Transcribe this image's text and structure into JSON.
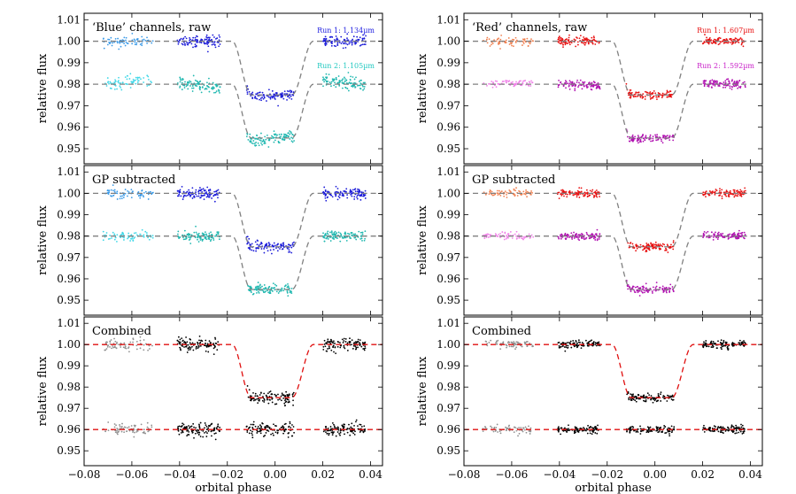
{
  "chart_data": [
    {
      "type": "scatter",
      "title": "‘Blue’ channels, raw",
      "xlabel": "",
      "ylabel": "relative flux",
      "xlim": [
        -0.08,
        0.045
      ],
      "ylim": [
        0.943,
        1.013
      ],
      "yticks": [
        0.95,
        0.96,
        0.97,
        0.98,
        0.99,
        1.0,
        1.01
      ],
      "xticks": [],
      "series": [
        {
          "name": "Run 1: 1.134µm",
          "label_color": "#2020e0",
          "baseline": 1.0,
          "depth": 0.025,
          "noise": 0.0012,
          "systematic": 0.0,
          "color_pre": "#3a9ae8",
          "color_main": "#1a1ad8"
        },
        {
          "name": "Run 2: 1.105µm",
          "label_color": "#20c8c0",
          "baseline": 0.98,
          "depth": 0.025,
          "noise": 0.0015,
          "systematic": 0.003,
          "color_pre": "#40d8e8",
          "color_main": "#20b8b0"
        }
      ],
      "model_color": "#808080",
      "grid": false
    },
    {
      "type": "scatter",
      "title": "‘Red’ channels, raw",
      "xlabel": "",
      "ylabel": "relative flux",
      "xlim": [
        -0.08,
        0.045
      ],
      "ylim": [
        0.943,
        1.013
      ],
      "yticks": [
        0.95,
        0.96,
        0.97,
        0.98,
        0.99,
        1.0,
        1.01
      ],
      "xticks": [],
      "series": [
        {
          "name": "Run 1: 1.607µm",
          "label_color": "#e81010",
          "baseline": 1.0,
          "depth": 0.025,
          "noise": 0.0009,
          "systematic": 0.0,
          "color_pre": "#f08050",
          "color_main": "#e81010"
        },
        {
          "name": "Run 2: 1.592µm",
          "label_color": "#c820c8",
          "baseline": 0.98,
          "depth": 0.025,
          "noise": 0.0009,
          "systematic": 0.001,
          "color_pre": "#f080e8",
          "color_main": "#b010b0"
        }
      ],
      "model_color": "#808080",
      "grid": false
    },
    {
      "type": "scatter",
      "title": "GP subtracted",
      "xlabel": "",
      "ylabel": "relative flux",
      "xlim": [
        -0.08,
        0.045
      ],
      "ylim": [
        0.943,
        1.013
      ],
      "yticks": [
        0.95,
        0.96,
        0.97,
        0.98,
        0.99,
        1.0,
        1.01
      ],
      "xticks": [],
      "series": [
        {
          "name": "",
          "baseline": 1.0,
          "depth": 0.025,
          "noise": 0.0012,
          "systematic": 0.0,
          "color_pre": "#3a9ae8",
          "color_main": "#1a1ad8"
        },
        {
          "name": "",
          "baseline": 0.98,
          "depth": 0.025,
          "noise": 0.0012,
          "systematic": 0.0,
          "color_pre": "#40d8e8",
          "color_main": "#20b8b0"
        }
      ],
      "model_color": "#808080",
      "grid": false
    },
    {
      "type": "scatter",
      "title": "GP subtracted",
      "xlabel": "",
      "ylabel": "relative flux",
      "xlim": [
        -0.08,
        0.045
      ],
      "ylim": [
        0.943,
        1.013
      ],
      "yticks": [
        0.95,
        0.96,
        0.97,
        0.98,
        0.99,
        1.0,
        1.01
      ],
      "xticks": [],
      "series": [
        {
          "name": "",
          "baseline": 1.0,
          "depth": 0.025,
          "noise": 0.0009,
          "systematic": 0.0,
          "color_pre": "#f08050",
          "color_main": "#e81010"
        },
        {
          "name": "",
          "baseline": 0.98,
          "depth": 0.025,
          "noise": 0.0009,
          "systematic": 0.0,
          "color_pre": "#f080e8",
          "color_main": "#b010b0"
        }
      ],
      "model_color": "#808080",
      "grid": false
    },
    {
      "type": "scatter",
      "title": "Combined",
      "xlabel": "orbital phase",
      "ylabel": "relative flux",
      "xlim": [
        -0.08,
        0.045
      ],
      "ylim": [
        0.943,
        1.013
      ],
      "yticks": [
        0.95,
        0.96,
        0.97,
        0.98,
        0.99,
        1.0,
        1.01
      ],
      "xticks": [
        -0.08,
        -0.06,
        -0.04,
        -0.02,
        0.0,
        0.02,
        0.04
      ],
      "xtick_labels": [
        "−0.08",
        "−0.06",
        "−0.04",
        "−0.02",
        "0.00",
        "0.02",
        "0.04"
      ],
      "series": [
        {
          "name": "",
          "baseline": 1.0,
          "depth": 0.025,
          "noise": 0.0015,
          "systematic": 0.0,
          "color_pre": "#909090",
          "color_main": "#000000"
        },
        {
          "name": "",
          "baseline": 0.96,
          "depth": 0.0,
          "noise": 0.0015,
          "systematic": 0.0,
          "color_pre": "#909090",
          "color_main": "#000000"
        }
      ],
      "model_color": "#e01010",
      "grid": false
    },
    {
      "type": "scatter",
      "title": "Combined",
      "xlabel": "orbital phase",
      "ylabel": "relative flux",
      "xlim": [
        -0.08,
        0.045
      ],
      "ylim": [
        0.943,
        1.013
      ],
      "yticks": [
        0.95,
        0.96,
        0.97,
        0.98,
        0.99,
        1.0,
        1.01
      ],
      "xticks": [
        -0.08,
        -0.06,
        -0.04,
        -0.02,
        0.0,
        0.02,
        0.04
      ],
      "xtick_labels": [
        "−0.08",
        "−0.06",
        "−0.04",
        "−0.02",
        "0.00",
        "0.02",
        "0.04"
      ],
      "series": [
        {
          "name": "",
          "baseline": 1.0,
          "depth": 0.025,
          "noise": 0.0009,
          "systematic": 0.0,
          "color_pre": "#909090",
          "color_main": "#000000"
        },
        {
          "name": "",
          "baseline": 0.96,
          "depth": 0.0,
          "noise": 0.0009,
          "systematic": 0.0,
          "color_pre": "#909090",
          "color_main": "#000000"
        }
      ],
      "model_color": "#e01010",
      "grid": false
    }
  ],
  "transit": {
    "ingress_start": -0.018,
    "ingress_end": -0.01,
    "egress_start": 0.007,
    "egress_end": 0.016
  },
  "phase_segments": {
    "pre": [
      -0.072,
      -0.051
    ],
    "main": [
      [
        -0.041,
        -0.023
      ],
      [
        -0.012,
        0.008
      ],
      [
        0.02,
        0.038
      ]
    ]
  },
  "ytick_labels": [
    "0.95",
    "0.96",
    "0.97",
    "0.98",
    "0.99",
    "1.00",
    "1.01"
  ]
}
